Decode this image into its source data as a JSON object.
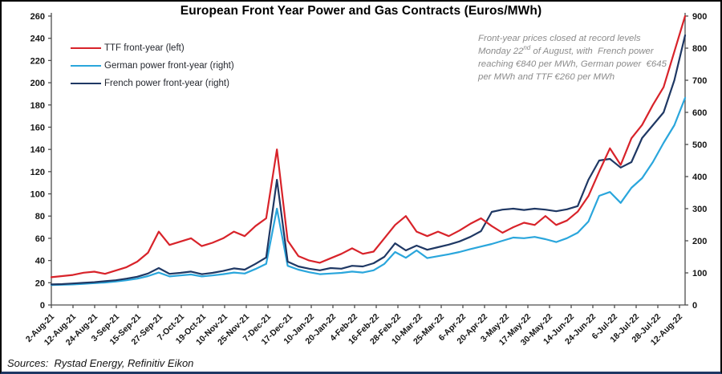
{
  "chart_data": {
    "type": "line",
    "title": "European Front Year Power and Gas Contracts (Euros/MWh)",
    "unit": "Euros/MWh",
    "grid": false,
    "legend_position": "top-left",
    "left_axis": {
      "min": 0,
      "max": 260,
      "step": 20,
      "ticks": [
        0,
        20,
        40,
        60,
        80,
        100,
        120,
        140,
        160,
        180,
        200,
        220,
        240,
        260
      ]
    },
    "right_axis": {
      "min": 0,
      "max": 900,
      "step": 100,
      "ticks": [
        0,
        100,
        200,
        300,
        400,
        500,
        600,
        700,
        800,
        900
      ]
    },
    "x_tick_labels": [
      "2-Aug-21",
      "12-Aug-21",
      "24-Aug-21",
      "3-Sep-21",
      "15-Sep-21",
      "27-Sep-21",
      "7-Oct-21",
      "19-Oct-21",
      "10-Nov-21",
      "25-Nov-21",
      "7-Dec-21",
      "17-Dec-21",
      "10-Jan-22",
      "20-Jan-22",
      "4-Feb-22",
      "16-Feb-22",
      "28-Feb-22",
      "10-Mar-22",
      "25-Mar-22",
      "6-Apr-22",
      "20-Apr-22",
      "3-May-22",
      "17-May-22",
      "30-May-22",
      "14-Jun-22",
      "24-Jun-22",
      "6-Jul-22",
      "18-Jul-22",
      "28-Jul-22",
      "12-Aug-22"
    ],
    "dates": [
      "2-Aug-21",
      "9-Aug-21",
      "16-Aug-21",
      "23-Aug-21",
      "30-Aug-21",
      "6-Sep-21",
      "13-Sep-21",
      "20-Sep-21",
      "27-Sep-21",
      "1-Oct-21",
      "6-Oct-21",
      "11-Oct-21",
      "18-Oct-21",
      "25-Oct-21",
      "1-Nov-21",
      "8-Nov-21",
      "15-Nov-21",
      "22-Nov-21",
      "29-Nov-21",
      "6-Dec-21",
      "13-Dec-21",
      "21-Dec-21",
      "27-Dec-21",
      "3-Jan-22",
      "10-Jan-22",
      "17-Jan-22",
      "24-Jan-22",
      "31-Jan-22",
      "7-Feb-22",
      "14-Feb-22",
      "21-Feb-22",
      "28-Feb-22",
      "4-Mar-22",
      "9-Mar-22",
      "14-Mar-22",
      "21-Mar-22",
      "28-Mar-22",
      "4-Apr-22",
      "11-Apr-22",
      "19-Apr-22",
      "25-Apr-22",
      "2-May-22",
      "9-May-22",
      "16-May-22",
      "23-May-22",
      "30-May-22",
      "7-Jun-22",
      "13-Jun-22",
      "20-Jun-22",
      "27-Jun-22",
      "4-Jul-22",
      "11-Jul-22",
      "14-Jul-22",
      "20-Jul-22",
      "27-Jul-22",
      "3-Aug-22",
      "10-Aug-22",
      "15-Aug-22",
      "18-Aug-22",
      "22-Aug-22"
    ],
    "series": [
      {
        "name": "TTF front-year (left)",
        "axis": "left",
        "color": "#D8232A",
        "values": [
          25,
          26,
          27,
          29,
          30,
          28,
          31,
          34,
          39,
          47,
          66,
          54,
          57,
          60,
          53,
          56,
          60,
          66,
          62,
          71,
          78,
          140,
          58,
          44,
          40,
          38,
          42,
          46,
          51,
          46,
          48,
          60,
          72,
          80,
          66,
          62,
          66,
          62,
          67,
          73,
          78,
          71,
          65,
          70,
          74,
          72,
          80,
          72,
          76,
          84,
          98,
          120,
          141,
          126,
          150,
          162,
          180,
          196,
          228,
          260
        ]
      },
      {
        "name": "German power front-year (right)",
        "axis": "right",
        "color": "#2AA6DC",
        "values": [
          62,
          63,
          64,
          66,
          68,
          70,
          73,
          77,
          82,
          90,
          101,
          89,
          92,
          95,
          89,
          92,
          96,
          101,
          98,
          112,
          128,
          300,
          122,
          110,
          102,
          96,
          98,
          100,
          104,
          101,
          108,
          128,
          165,
          147,
          170,
          146,
          152,
          158,
          165,
          174,
          182,
          190,
          200,
          210,
          208,
          212,
          205,
          196,
          208,
          225,
          260,
          340,
          352,
          318,
          365,
          395,
          445,
          505,
          560,
          645
        ]
      },
      {
        "name": "French power front-year (right)",
        "axis": "right",
        "color": "#1F3864",
        "values": [
          64,
          65,
          67,
          69,
          71,
          74,
          77,
          82,
          88,
          98,
          115,
          97,
          100,
          104,
          96,
          100,
          106,
          114,
          110,
          128,
          148,
          390,
          135,
          120,
          113,
          108,
          115,
          113,
          122,
          120,
          130,
          150,
          192,
          170,
          185,
          172,
          180,
          188,
          198,
          212,
          230,
          290,
          297,
          300,
          296,
          300,
          297,
          292,
          298,
          308,
          390,
          450,
          455,
          428,
          445,
          520,
          560,
          600,
          700,
          840
        ]
      }
    ],
    "record_close": {
      "date": "22-Aug-22",
      "french_power": 840,
      "german_power": 645,
      "ttf": 260
    }
  },
  "legend": {
    "items": [
      {
        "label": "TTF front-year (left)",
        "color": "#D8232A"
      },
      {
        "label": "German power front-year (right)",
        "color": "#2AA6DC"
      },
      {
        "label": "French power front-year (right)",
        "color": "#1F3864"
      }
    ]
  },
  "annotation": {
    "line1": "Front-year prices closed at record levels",
    "line2_pre": "Monday 22",
    "line2_sup": "nd",
    "line2_post": " of August, with  French power",
    "line3": "reaching €840 per MWh, German power  €645",
    "line4": "per MWh and TTF €260 per MWh",
    "color": "#8C8C8C"
  },
  "footer": {
    "sources": "Sources:  Rystad Energy, Refinitiv Eikon"
  },
  "frame": {
    "accent_color": "#1F3864"
  }
}
